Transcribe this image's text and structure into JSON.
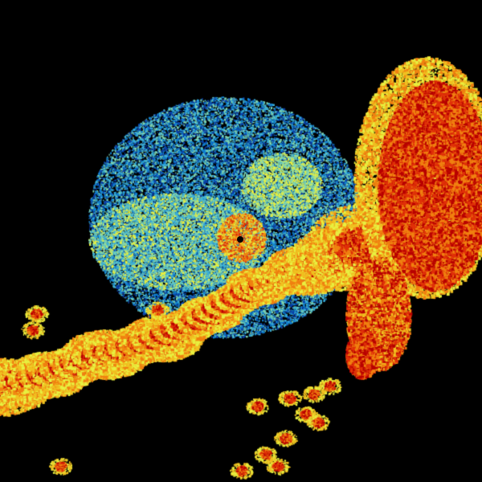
{
  "image": {
    "kind": "radar-reflectivity",
    "background": "#000000",
    "palette": [
      "#0a3fa8",
      "#0f7fd0",
      "#3bb0d8",
      "#7fd4b0",
      "#e8f040",
      "#f0c020",
      "#f08010",
      "#e03008",
      "#b80000"
    ]
  }
}
